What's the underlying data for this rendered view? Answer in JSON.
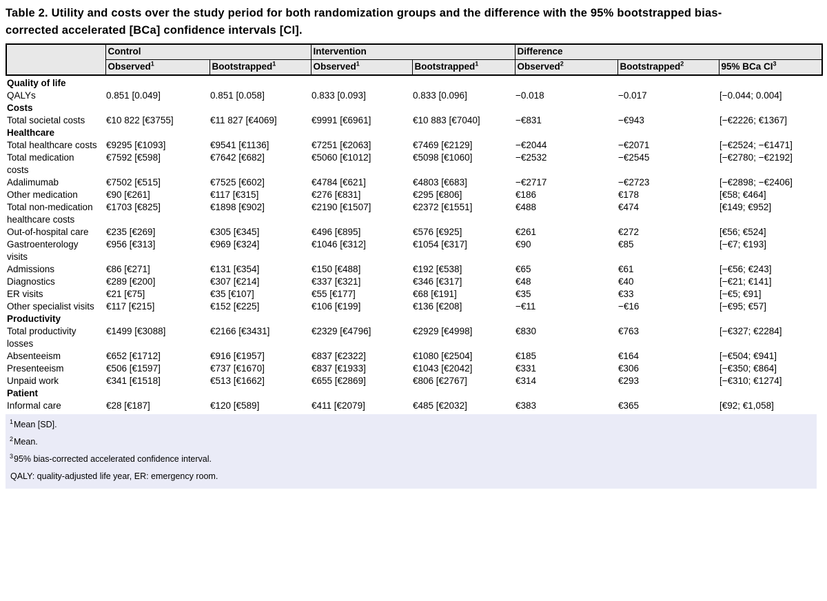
{
  "colors": {
    "header_bg": "#e8e8e8",
    "footnote_bg": "#eaebf7",
    "border": "#000000"
  },
  "title": "Table 2. Utility and costs over the study period for both randomization groups and the difference with the 95% bootstrapped bias-corrected accelerated [BCa] confidence intervals [CI].",
  "table": {
    "groups": [
      "Control",
      "Intervention",
      "Difference"
    ],
    "sub_headers": [
      {
        "label": "Observed",
        "sup": "1"
      },
      {
        "label": "Bootstrapped",
        "sup": "1"
      },
      {
        "label": "Observed",
        "sup": "1"
      },
      {
        "label": "Bootstrapped",
        "sup": "1"
      },
      {
        "label": "Observed",
        "sup": "2"
      },
      {
        "label": "Bootstrapped",
        "sup": "2"
      },
      {
        "label": "95% BCa CI",
        "sup": "3"
      }
    ],
    "rows": [
      {
        "type": "section",
        "label": "Quality of life"
      },
      {
        "type": "data",
        "label": "QALYs",
        "values": [
          "0.851 [0.049]",
          "0.851 [0.058]",
          "0.833 [0.093]",
          "0.833 [0.096]",
          "−0.018",
          "−0.017",
          "[−0.044; 0.004]"
        ]
      },
      {
        "type": "section",
        "label": "Costs"
      },
      {
        "type": "data",
        "label": "Total societal costs",
        "values": [
          "€10 822 [€3755]",
          "€11 827 [€4069]",
          "€9991 [€6961]",
          "€10 883 [€7040]",
          "−€831",
          "−€943",
          "[−€2226; €1367]"
        ]
      },
      {
        "type": "section",
        "label": "Healthcare"
      },
      {
        "type": "data",
        "label": "Total healthcare costs",
        "values": [
          "€9295 [€1093]",
          "€9541 [€1136]",
          "€7251 [€2063]",
          "€7469 [€2129]",
          "−€2044",
          "−€2071",
          "[−€2524; −€1471]"
        ]
      },
      {
        "type": "data",
        "label": "Total medication\ncosts",
        "values": [
          "€7592 [€598]",
          "€7642 [€682]",
          "€5060 [€1012]",
          "€5098 [€1060]",
          "−€2532",
          "−€2545",
          "[−€2780; −€2192]"
        ]
      },
      {
        "type": "data",
        "label": "Adalimumab",
        "values": [
          "€7502 [€515]",
          "€7525 [€602]",
          "€4784 [€621]",
          "€4803 [€683]",
          "−€2717",
          "−€2723",
          "[−€2898; −€2406]"
        ]
      },
      {
        "type": "data",
        "label": "Other medication",
        "values": [
          "€90 [€261]",
          "€117 [€315]",
          "€276 [€831]",
          "€295 [€806]",
          "€186",
          "€178",
          "[€58; €464]"
        ]
      },
      {
        "type": "data",
        "label": "Total non-medication\nhealthcare costs",
        "values": [
          "€1703 [€825]",
          "€1898 [€902]",
          "€2190 [€1507]",
          "€2372 [€1551]",
          "€488",
          "€474",
          "[€149; €952]"
        ]
      },
      {
        "type": "data",
        "label": "Out-of-hospital care",
        "values": [
          "€235 [€269]",
          "€305 [€345]",
          "€496 [€895]",
          "€576 [€925]",
          "€261",
          "€272",
          "[€56; €524]"
        ]
      },
      {
        "type": "data",
        "label": "Gastroenterology\nvisits",
        "values": [
          "€956 [€313]",
          "€969 [€324]",
          "€1046 [€312]",
          "€1054 [€317]",
          "€90",
          "€85",
          "[−€7; €193]"
        ]
      },
      {
        "type": "data",
        "label": "Admissions",
        "values": [
          "€86 [€271]",
          "€131 [€354]",
          "€150 [€488]",
          "€192 [€538]",
          "€65",
          "€61",
          "[−€56; €243]"
        ]
      },
      {
        "type": "data",
        "label": "Diagnostics",
        "values": [
          "€289 [€200]",
          "€307 [€214]",
          "€337 [€321]",
          "€346 [€317]",
          "€48",
          "€40",
          "[−€21; €141]"
        ]
      },
      {
        "type": "data",
        "label": "ER visits",
        "values": [
          "€21 [€75]",
          "€35 [€107]",
          "€55 [€177]",
          "€68 [€191]",
          "€35",
          "€33",
          "[−€5; €91]"
        ]
      },
      {
        "type": "data",
        "label": "Other specialist visits",
        "values": [
          "€117 [€215]",
          "€152 [€225]",
          "€106 [€199]",
          "€136 [€208]",
          "−€11",
          "−€16",
          "[−€95; €57]"
        ]
      },
      {
        "type": "section",
        "label": "Productivity"
      },
      {
        "type": "data",
        "label": "Total productivity\nlosses",
        "values": [
          "€1499 [€3088]",
          "€2166 [€3431]",
          "€2329 [€4796]",
          "€2929 [€4998]",
          "€830",
          "€763",
          "[−€327; €2284]"
        ]
      },
      {
        "type": "data",
        "label": "Absenteeism",
        "values": [
          "€652 [€1712]",
          "€916 [€1957]",
          "€837 [€2322]",
          "€1080 [€2504]",
          "€185",
          "€164",
          "[−€504; €941]"
        ]
      },
      {
        "type": "data",
        "label": "Presenteeism",
        "values": [
          "€506 [€1597]",
          "€737 [€1670]",
          "€837 [€1933]",
          "€1043 [€2042]",
          "€331",
          "€306",
          "[−€350; €864]"
        ]
      },
      {
        "type": "data",
        "label": "Unpaid work",
        "values": [
          "€341 [€1518]",
          "€513 [€1662]",
          "€655 [€2869]",
          "€806 [€2767]",
          "€314",
          "€293",
          "[−€310; €1274]"
        ]
      },
      {
        "type": "section",
        "label": "Patient"
      },
      {
        "type": "data",
        "label": "Informal care",
        "values": [
          "€28 [€187]",
          "€120 [€589]",
          "€411 [€2079]",
          "€485 [€2032]",
          "€383",
          "€365",
          "[€92; €1,058]"
        ]
      }
    ]
  },
  "footnotes": [
    {
      "sup": "1",
      "text": "Mean [SD]."
    },
    {
      "sup": "2",
      "text": "Mean."
    },
    {
      "sup": "3",
      "text": "95% bias-corrected accelerated confidence interval."
    },
    {
      "sup": "",
      "text": "QALY: quality-adjusted life year, ER: emergency room."
    }
  ]
}
